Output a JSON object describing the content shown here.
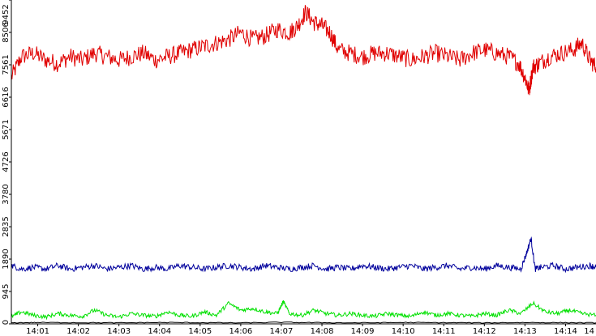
{
  "chart_data": {
    "type": "line",
    "title": "",
    "xlabel": "",
    "ylabel": "",
    "ylim": [
      0,
      9452
    ],
    "xlim_minutes": [
      0.35,
      14.75
    ],
    "y_ticks": [
      {
        "value": 0,
        "label": "0"
      },
      {
        "value": 945,
        "label": "945"
      },
      {
        "value": 1890,
        "label": "1890"
      },
      {
        "value": 2835,
        "label": "2835"
      },
      {
        "value": 3780,
        "label": "3780"
      },
      {
        "value": 4726,
        "label": "4726"
      },
      {
        "value": 5671,
        "label": "5671"
      },
      {
        "value": 6616,
        "label": "6616"
      },
      {
        "value": 7561,
        "label": "7561"
      },
      {
        "value": 8506,
        "label": "8506"
      },
      {
        "value": 9452,
        "label": "9452"
      }
    ],
    "x_ticks": [
      {
        "value": 1,
        "label": "14:01"
      },
      {
        "value": 2,
        "label": "14:02"
      },
      {
        "value": 3,
        "label": "14:03"
      },
      {
        "value": 4,
        "label": "14:04"
      },
      {
        "value": 5,
        "label": "14:05"
      },
      {
        "value": 6,
        "label": "14:06"
      },
      {
        "value": 7,
        "label": "14:07"
      },
      {
        "value": 8,
        "label": "14:08"
      },
      {
        "value": 9,
        "label": "14:09"
      },
      {
        "value": 10,
        "label": "14:10"
      },
      {
        "value": 11,
        "label": "14:11"
      },
      {
        "value": 12,
        "label": "14:12"
      },
      {
        "value": 13,
        "label": "14:13"
      },
      {
        "value": 14,
        "label": "14:14"
      },
      {
        "value": 15,
        "label": "14"
      }
    ],
    "grid": false,
    "legend": "none",
    "series": [
      {
        "color": "#e00000",
        "x": [
          0.35,
          0.6,
          0.9,
          1.2,
          1.5,
          1.8,
          2.1,
          2.4,
          2.7,
          3.0,
          3.3,
          3.6,
          3.9,
          4.2,
          4.5,
          4.8,
          5.1,
          5.4,
          5.7,
          6.0,
          6.3,
          6.6,
          6.9,
          7.2,
          7.4,
          7.6,
          7.8,
          8.0,
          8.2,
          8.4,
          8.7,
          9.0,
          9.3,
          9.6,
          9.9,
          10.2,
          10.5,
          10.8,
          11.1,
          11.4,
          11.7,
          12.0,
          12.3,
          12.6,
          12.85,
          13.0,
          13.1,
          13.2,
          13.35,
          13.6,
          13.9,
          14.2,
          14.4,
          14.6,
          14.75
        ],
        "values": [
          7200,
          7800,
          7900,
          7700,
          7600,
          7800,
          7700,
          7900,
          7800,
          7700,
          7800,
          7900,
          7700,
          7800,
          7900,
          8000,
          8100,
          8200,
          8300,
          8500,
          8300,
          8400,
          8600,
          8500,
          8700,
          9100,
          8800,
          8700,
          8500,
          8000,
          7900,
          7800,
          7900,
          7900,
          7800,
          7700,
          7800,
          7900,
          7800,
          7700,
          7900,
          8000,
          7900,
          7800,
          7600,
          7200,
          6800,
          7500,
          7600,
          7800,
          7900,
          8000,
          8200,
          7700,
          7500
        ]
      },
      {
        "color": "#00009c",
        "x": [
          0.35,
          0.6,
          0.9,
          1.2,
          1.5,
          1.8,
          2.1,
          2.4,
          2.7,
          3.0,
          3.3,
          3.6,
          3.9,
          4.2,
          4.5,
          4.8,
          5.1,
          5.4,
          5.7,
          6.0,
          6.3,
          6.6,
          6.9,
          7.2,
          7.5,
          7.8,
          8.1,
          8.4,
          8.7,
          9.0,
          9.3,
          9.6,
          9.9,
          10.2,
          10.5,
          10.8,
          11.1,
          11.4,
          11.7,
          12.0,
          12.3,
          12.6,
          12.9,
          13.05,
          13.15,
          13.25,
          13.4,
          13.7,
          14.0,
          14.3,
          14.6,
          14.75
        ],
        "values": [
          1700,
          1600,
          1650,
          1600,
          1700,
          1600,
          1650,
          1700,
          1600,
          1650,
          1700,
          1600,
          1650,
          1600,
          1700,
          1650,
          1600,
          1650,
          1700,
          1650,
          1600,
          1700,
          1650,
          1600,
          1650,
          1700,
          1600,
          1650,
          1600,
          1700,
          1650,
          1600,
          1650,
          1700,
          1600,
          1650,
          1700,
          1600,
          1650,
          1600,
          1700,
          1650,
          1600,
          2100,
          2500,
          1600,
          1650,
          1700,
          1600,
          1650,
          1700,
          1650
        ]
      },
      {
        "color": "#00e000",
        "x": [
          0.35,
          0.6,
          0.9,
          1.2,
          1.5,
          1.8,
          2.1,
          2.4,
          2.7,
          3.0,
          3.3,
          3.6,
          3.9,
          4.2,
          4.5,
          4.8,
          5.1,
          5.4,
          5.7,
          6.0,
          6.3,
          6.6,
          6.9,
          7.05,
          7.2,
          7.5,
          7.8,
          8.1,
          8.4,
          8.7,
          9.0,
          9.3,
          9.6,
          9.9,
          10.2,
          10.5,
          10.8,
          11.1,
          11.4,
          11.7,
          12.0,
          12.3,
          12.6,
          12.9,
          13.2,
          13.5,
          13.8,
          14.1,
          14.4,
          14.75
        ],
        "values": [
          200,
          350,
          250,
          200,
          300,
          250,
          220,
          400,
          250,
          200,
          300,
          250,
          220,
          350,
          250,
          220,
          350,
          250,
          600,
          400,
          450,
          350,
          300,
          650,
          300,
          250,
          400,
          300,
          250,
          300,
          250,
          220,
          300,
          250,
          220,
          350,
          250,
          300,
          250,
          220,
          300,
          250,
          400,
          300,
          600,
          350,
          300,
          400,
          300,
          250
        ]
      },
      {
        "color": "#000000",
        "x": [
          0.35,
          1.0,
          2.0,
          3.0,
          4.0,
          5.0,
          6.0,
          7.0,
          8.0,
          9.0,
          10.0,
          11.0,
          12.0,
          13.0,
          14.0,
          14.75
        ],
        "values": [
          30,
          40,
          35,
          30,
          40,
          35,
          30,
          45,
          35,
          30,
          40,
          35,
          30,
          40,
          35,
          30
        ]
      }
    ]
  }
}
